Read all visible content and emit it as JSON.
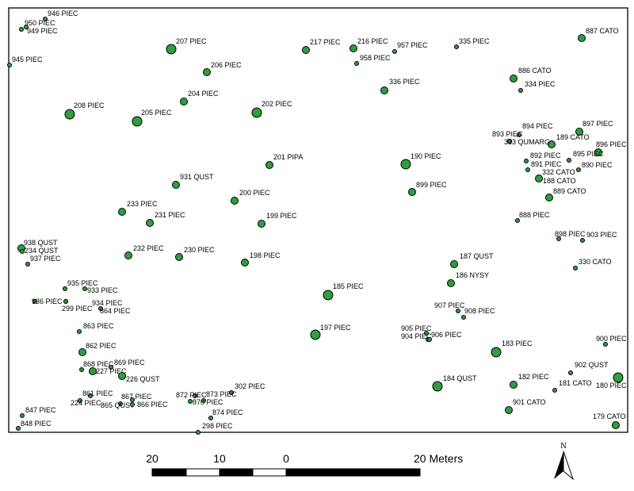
{
  "map": {
    "trees": [
      {
        "label": "946 PIEC",
        "size": "s"
      },
      {
        "label": "950 PIEC",
        "size": "s"
      },
      {
        "label": "949 PIEC",
        "size": "s"
      },
      {
        "label": "945 PIEC",
        "size": "s"
      },
      {
        "label": "207 PIEC",
        "size": "l"
      },
      {
        "label": "206 PIEC",
        "size": "m"
      },
      {
        "label": "204 PIEC",
        "size": "m"
      },
      {
        "label": "208 PIEC",
        "size": "l"
      },
      {
        "label": "205 PIEC",
        "size": "l"
      },
      {
        "label": "202 PIEC",
        "size": "l"
      },
      {
        "label": "217 PIEC",
        "size": "m"
      },
      {
        "label": "216 PIEC",
        "size": "m"
      },
      {
        "label": "958 PIEC",
        "size": "s"
      },
      {
        "label": "957 PIEC",
        "size": "s"
      },
      {
        "label": "335 PIEC",
        "size": "s"
      },
      {
        "label": "336 PIEC",
        "size": "m"
      },
      {
        "label": "887 CATO",
        "size": "m"
      },
      {
        "label": "886 CATO",
        "size": "m"
      },
      {
        "label": "334 PIEC",
        "size": "s"
      },
      {
        "label": "894 PIEC",
        "size": "s"
      },
      {
        "label": "897 PIEC",
        "size": "m"
      },
      {
        "label": "893 PIEC",
        "size": "s"
      },
      {
        "label": "189 CATO",
        "size": "m"
      },
      {
        "label": "333 QUMARG",
        "size": "s"
      },
      {
        "label": "896 PIEC",
        "size": "m"
      },
      {
        "label": "895 PIEC",
        "size": "s"
      },
      {
        "label": "892 PIEC",
        "size": "s"
      },
      {
        "label": "891 PIEC",
        "size": "s"
      },
      {
        "label": "890 PIEC",
        "size": "s"
      },
      {
        "label": "332 CATO",
        "size": "s"
      },
      {
        "label": "188 CATO",
        "size": "m"
      },
      {
        "label": "889 CATO",
        "size": "m"
      },
      {
        "label": "201 PIPA",
        "size": "m"
      },
      {
        "label": "190 PIEC",
        "size": "l"
      },
      {
        "label": "899 PIEC",
        "size": "m"
      },
      {
        "label": "931 QUST",
        "size": "m"
      },
      {
        "label": "200 PIEC",
        "size": "m"
      },
      {
        "label": "233 PIEC",
        "size": "m"
      },
      {
        "label": "231 PIEC",
        "size": "m"
      },
      {
        "label": "199 PIEC",
        "size": "m"
      },
      {
        "label": "888 PIEC",
        "size": "s"
      },
      {
        "label": "898 PIEC",
        "size": "s"
      },
      {
        "label": "903 PIEC",
        "size": "s"
      },
      {
        "label": "938 QUST",
        "size": "m"
      },
      {
        "label": "234 QUST",
        "size": "s"
      },
      {
        "label": "937 PIEC",
        "size": "s"
      },
      {
        "label": "232 PIEC",
        "size": "m"
      },
      {
        "label": "230 PIEC",
        "size": "m"
      },
      {
        "label": "198 PIEC",
        "size": "m"
      },
      {
        "label": "187 QUST",
        "size": "m"
      },
      {
        "label": "330 CATO",
        "size": "s"
      },
      {
        "label": "186 NYSY",
        "size": "m"
      },
      {
        "label": "935 PIEC",
        "size": "s"
      },
      {
        "label": "933 PIEC",
        "size": "s"
      },
      {
        "label": "936 PIEC",
        "size": "s"
      },
      {
        "label": "934 PIEC",
        "size": "s"
      },
      {
        "label": "299 PIEC",
        "size": "s"
      },
      {
        "label": "864 PIEC",
        "size": "s"
      },
      {
        "label": "185 PIEC",
        "size": "l"
      },
      {
        "label": "907 PIEC",
        "size": "s"
      },
      {
        "label": "908 PIEC",
        "size": "s"
      },
      {
        "label": "863 PIEC",
        "size": "s"
      },
      {
        "label": "197 PIEC",
        "size": "l"
      },
      {
        "label": "905 PIEC",
        "size": "s"
      },
      {
        "label": "904 PIEC",
        "size": "s"
      },
      {
        "label": "906 PIEC",
        "size": "s"
      },
      {
        "label": "900 PIEC",
        "size": "s"
      },
      {
        "label": "862 PIEC",
        "size": "m"
      },
      {
        "label": "183 PIEC",
        "size": "l"
      },
      {
        "label": "868 PIEC",
        "size": "s"
      },
      {
        "label": "869 PIEC",
        "size": "s"
      },
      {
        "label": "227 PIEC",
        "size": "m"
      },
      {
        "label": "226 QUST",
        "size": "m"
      },
      {
        "label": "902 QUST",
        "size": "s"
      },
      {
        "label": "182 PIEC",
        "size": "m"
      },
      {
        "label": "181 CATO",
        "size": "s"
      },
      {
        "label": "180 PIEC",
        "size": "l"
      },
      {
        "label": "184 QUST",
        "size": "l"
      },
      {
        "label": "302 PIEC",
        "size": "s"
      },
      {
        "label": "861 PIEC",
        "size": "s"
      },
      {
        "label": "224 PIEC",
        "size": "s"
      },
      {
        "label": "867 PIEC",
        "size": "s"
      },
      {
        "label": "865 QUST",
        "size": "s"
      },
      {
        "label": "866 PIEC",
        "size": "s"
      },
      {
        "label": "872 PIEC",
        "size": "s"
      },
      {
        "label": "873 PIEC",
        "size": "s"
      },
      {
        "label": "870 PIEC",
        "size": "s"
      },
      {
        "label": "874 PIEC",
        "size": "s"
      },
      {
        "label": "901 CATO",
        "size": "m"
      },
      {
        "label": "179 CATO",
        "size": "m"
      },
      {
        "label": "847 PIEC",
        "size": "s"
      },
      {
        "label": "848 PIEC",
        "size": "s"
      },
      {
        "label": "298 PIEC",
        "size": "s"
      }
    ],
    "scale_bar": {
      "ticks": [
        "20",
        "10",
        "0",
        "20 Meters"
      ]
    },
    "north_arrow": {
      "label": "N"
    },
    "colors": {
      "tree_fill": "#2e9e3e",
      "tree_stroke": "#000000",
      "frame": "#000000"
    }
  }
}
